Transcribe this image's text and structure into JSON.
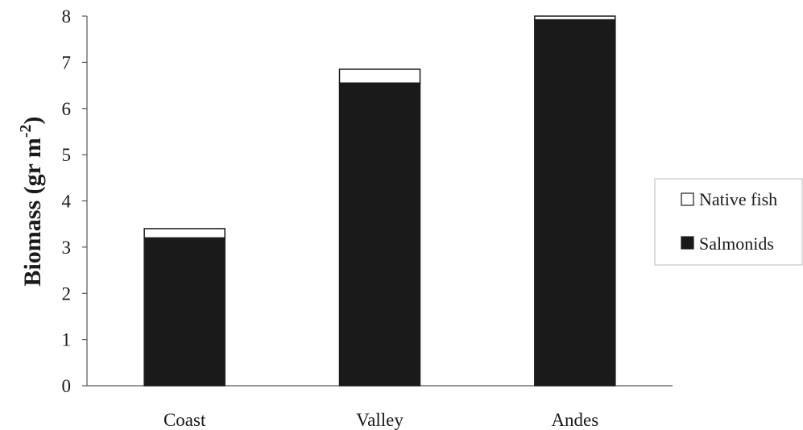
{
  "chart_data": {
    "type": "bar",
    "stacked": true,
    "categories": [
      "Coast",
      "Valley",
      "Andes"
    ],
    "series": [
      {
        "name": "Salmonids",
        "values": [
          3.2,
          6.55,
          7.92
        ],
        "color": "#1a1a1a"
      },
      {
        "name": "Native fish",
        "values": [
          0.2,
          0.3,
          0.08
        ],
        "color": "#ffffff"
      }
    ],
    "ylabel": {
      "main": "Biomass (gr m",
      "exponent": "-2",
      "close": ")"
    },
    "ylim": [
      0,
      8
    ],
    "yticks": [
      "0",
      "1",
      "2",
      "3",
      "4",
      "5",
      "6",
      "7",
      "8"
    ],
    "grid": false,
    "legend": {
      "placement": "right",
      "items": [
        {
          "label": "Native fish",
          "color": "#ffffff"
        },
        {
          "label": "Salmonids",
          "color": "#1a1a1a"
        }
      ]
    }
  }
}
